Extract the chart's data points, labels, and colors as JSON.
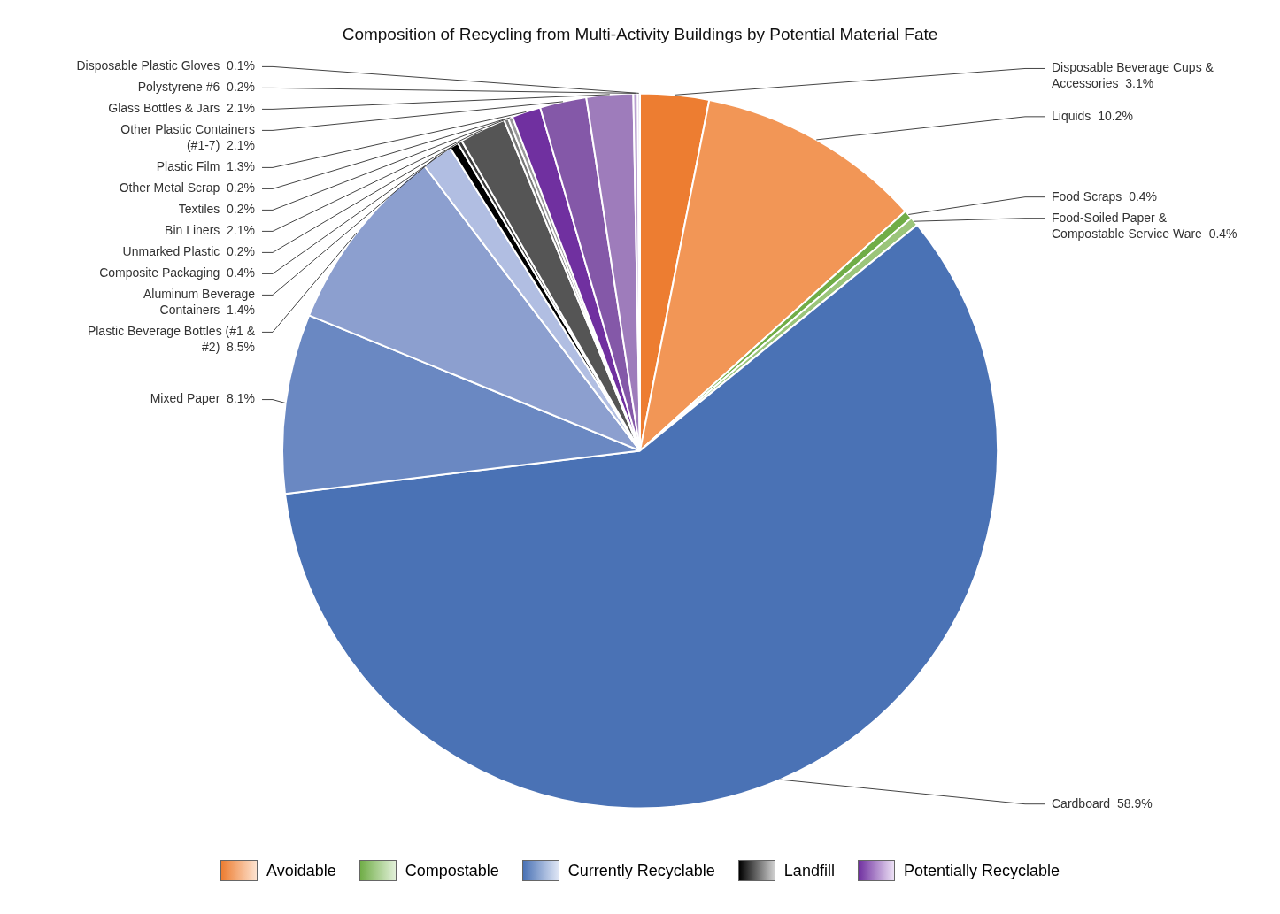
{
  "chart_data": {
    "type": "pie",
    "title": "Composition of Recycling from Multi-Activity Buildings by Potential Material Fate",
    "categories": [
      "Disposable Beverage Cups & Accessories",
      "Liquids",
      "Food Scraps",
      "Food-Soiled Paper & Compostable Service Ware",
      "Cardboard",
      "Mixed Paper",
      "Plastic Beverage Bottles (#1 & #2)",
      "Aluminum Beverage Containers",
      "Composite Packaging",
      "Unmarked Plastic",
      "Bin Liners",
      "Textiles",
      "Other Metal Scrap",
      "Plastic Film",
      "Other Plastic Containers (#1-7)",
      "Glass Bottles & Jars",
      "Polystyrene #6",
      "Disposable Plastic Gloves"
    ],
    "values": [
      3.1,
      10.2,
      0.4,
      0.4,
      58.9,
      8.1,
      8.5,
      1.4,
      0.4,
      0.2,
      2.1,
      0.2,
      0.2,
      1.3,
      2.1,
      2.1,
      0.2,
      0.1
    ],
    "value_labels": [
      "3.1%",
      "10.2%",
      "0.4%",
      "0.4%",
      "58.9%",
      "8.1%",
      "8.5%",
      "1.4%",
      "0.4%",
      "0.2%",
      "2.1%",
      "0.2%",
      "0.2%",
      "1.3%",
      "2.1%",
      "2.1%",
      "0.2%",
      "0.1%"
    ],
    "colors": [
      "#ed7d31",
      "#f29656",
      "#70ad47",
      "#9bc57a",
      "#4a72b5",
      "#6a88c2",
      "#8c9fcf",
      "#b1bee2",
      "#000000",
      "#3a3a3a",
      "#555555",
      "#7a7a7a",
      "#9a9a9a",
      "#7030a0",
      "#8458a8",
      "#9e7cbb",
      "#b9a0d0",
      "#d4c4e4"
    ],
    "annotations": [
      "Avoidable",
      "Compostable",
      "Currently Recyclable",
      "Landfill",
      "Potentially Recyclable"
    ]
  }
}
